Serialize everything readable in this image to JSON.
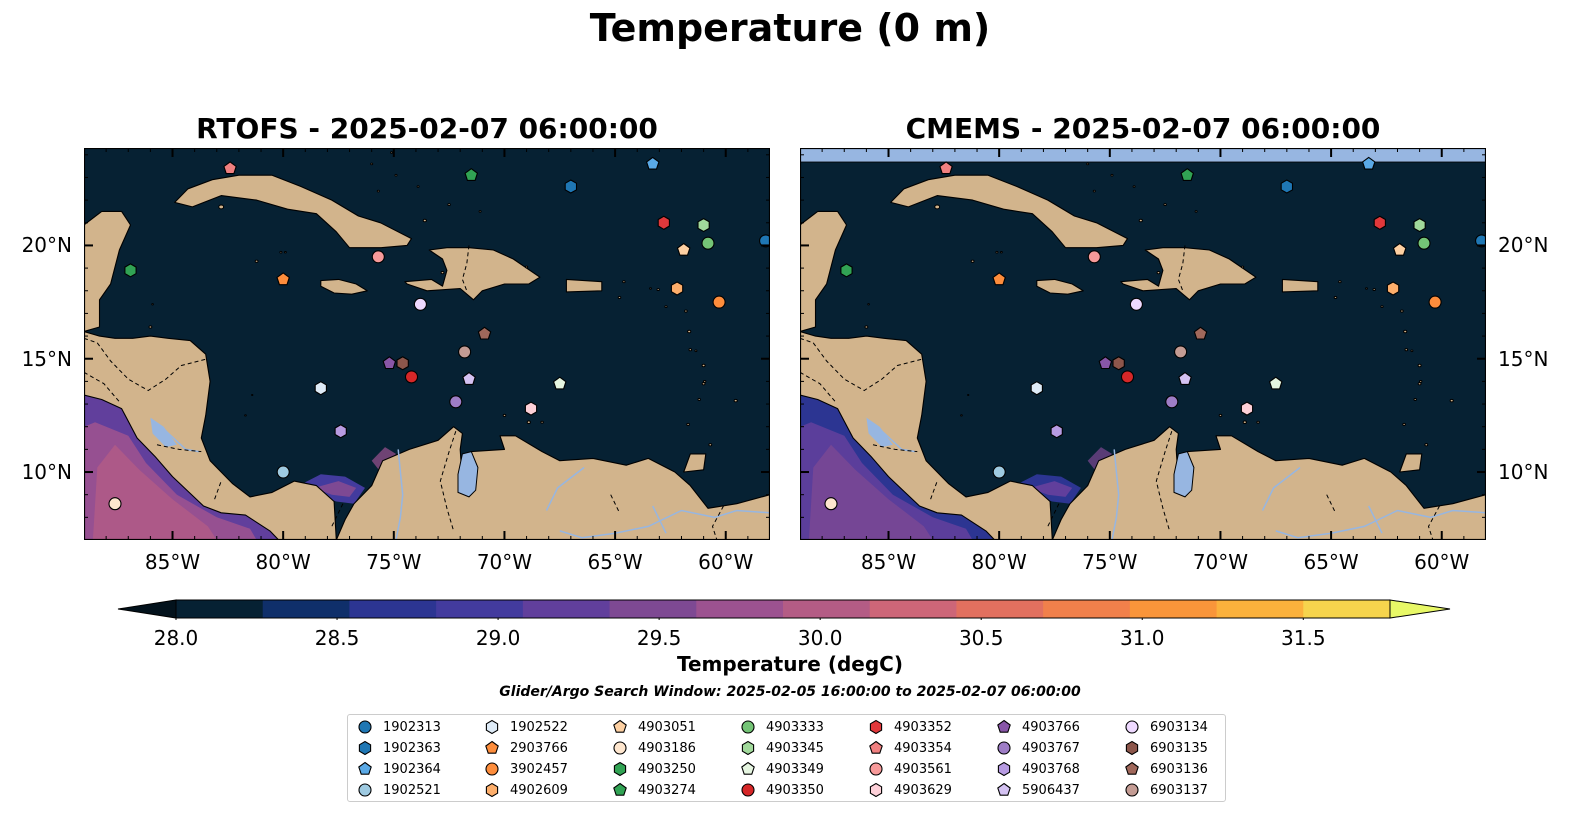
{
  "figure": {
    "suptitle": "Temperature (0 m)",
    "window_text": "Glider/Argo Search Window: 2025-02-05 16:00:00 to 2025-02-07 06:00:00"
  },
  "panels": [
    {
      "id": "rtofs",
      "title": "RTOFS - 2025-02-07 06:00:00",
      "top_strip": false
    },
    {
      "id": "cmems",
      "title": "CMEMS - 2025-02-07 06:00:00",
      "top_strip": true
    }
  ],
  "map": {
    "extent": {
      "lon_min": -89,
      "lon_max": -58,
      "lat_min": 7,
      "lat_max": 24.3
    },
    "lon_ticks": [
      {
        "lon": -85,
        "label": "85°W"
      },
      {
        "lon": -80,
        "label": "80°W"
      },
      {
        "lon": -75,
        "label": "75°W"
      },
      {
        "lon": -70,
        "label": "70°W"
      },
      {
        "lon": -65,
        "label": "65°W"
      },
      {
        "lon": -60,
        "label": "60°W"
      }
    ],
    "lat_ticks": [
      {
        "lat": 10,
        "label": "10°N"
      },
      {
        "lat": 15,
        "label": "15°N"
      },
      {
        "lat": 20,
        "label": "20°N"
      }
    ],
    "ocean_color": "#062133",
    "land_color": "#d2b48c",
    "lake_color": "#97b6e1"
  },
  "colorbar": {
    "label": "Temperature (degC)",
    "min": 28.0,
    "max": 31.5,
    "ticks": [
      "28.0",
      "28.5",
      "29.0",
      "29.5",
      "30.0",
      "30.5",
      "31.0",
      "31.5"
    ],
    "colors": [
      "#062133",
      "#0f2f6a",
      "#2c3592",
      "#433b9e",
      "#613f9c",
      "#7e4993",
      "#9c5290",
      "#b45c85",
      "#cd6678",
      "#e2705f",
      "#f1804b",
      "#f9953a",
      "#fbb13c",
      "#f6d44d"
    ],
    "under_color": "#03121c",
    "over_color": "#e8f867"
  },
  "floats": [
    {
      "id": "1902313",
      "marker": "circle",
      "color": "#1f77b4",
      "lon": -58.2,
      "lat": 20.2
    },
    {
      "id": "1902363",
      "marker": "hexagon",
      "color": "#1f77b4",
      "lon": -67.0,
      "lat": 22.6
    },
    {
      "id": "1902364",
      "marker": "pentagon",
      "color": "#5aa9e6",
      "lon": -63.3,
      "lat": 23.6
    },
    {
      "id": "1902521",
      "marker": "circle",
      "color": "#9ecae1",
      "lon": -80.0,
      "lat": 10.0
    },
    {
      "id": "1902522",
      "marker": "hexagon",
      "color": "#deebf7",
      "lon": -78.3,
      "lat": 13.7
    },
    {
      "id": "2903766",
      "marker": "pentagon",
      "color": "#fd8d3c",
      "lon": -80.0,
      "lat": 18.5
    },
    {
      "id": "3902457",
      "marker": "circle",
      "color": "#fd8d3c",
      "lon": -60.3,
      "lat": 17.5
    },
    {
      "id": "4902609",
      "marker": "hexagon",
      "color": "#fdae6b",
      "lon": -62.2,
      "lat": 18.1
    },
    {
      "id": "4903051",
      "marker": "pentagon",
      "color": "#fdd0a2",
      "lon": -61.9,
      "lat": 19.8
    },
    {
      "id": "4903186",
      "marker": "circle",
      "color": "#fee6ce",
      "lon": -87.6,
      "lat": 8.6
    },
    {
      "id": "4903250",
      "marker": "hexagon",
      "color": "#31a354",
      "lon": -86.9,
      "lat": 18.9
    },
    {
      "id": "4903274",
      "marker": "pentagon",
      "color": "#31a354",
      "lon": -71.5,
      "lat": 23.1
    },
    {
      "id": "4903333",
      "marker": "circle",
      "color": "#74c476",
      "lon": -60.8,
      "lat": 20.1
    },
    {
      "id": "4903345",
      "marker": "hexagon",
      "color": "#a1d99b",
      "lon": -61.0,
      "lat": 20.9
    },
    {
      "id": "4903349",
      "marker": "pentagon",
      "color": "#e5f5e0",
      "lon": -67.5,
      "lat": 13.9
    },
    {
      "id": "4903350",
      "marker": "circle",
      "color": "#d62728",
      "lon": -74.2,
      "lat": 14.2
    },
    {
      "id": "4903352",
      "marker": "hexagon",
      "color": "#e0383b",
      "lon": -62.8,
      "lat": 21.0
    },
    {
      "id": "4903354",
      "marker": "pentagon",
      "color": "#f08080",
      "lon": -82.4,
      "lat": 23.4
    },
    {
      "id": "4903561",
      "marker": "circle",
      "color": "#f79a9a",
      "lon": -75.7,
      "lat": 19.5
    },
    {
      "id": "4903629",
      "marker": "hexagon",
      "color": "#fdd0d8",
      "lon": -68.8,
      "lat": 12.8
    },
    {
      "id": "4903766",
      "marker": "pentagon",
      "color": "#8856a7",
      "lon": -75.2,
      "lat": 14.8
    },
    {
      "id": "4903767",
      "marker": "circle",
      "color": "#9e7dc6",
      "lon": -72.2,
      "lat": 13.1
    },
    {
      "id": "4903768",
      "marker": "hexagon",
      "color": "#b79be2",
      "lon": -77.4,
      "lat": 11.8
    },
    {
      "id": "5906437",
      "marker": "pentagon",
      "color": "#d4c2f2",
      "lon": -71.6,
      "lat": 14.1
    },
    {
      "id": "6903134",
      "marker": "circle",
      "color": "#eed9ff",
      "lon": -73.8,
      "lat": 17.4
    },
    {
      "id": "6903135",
      "marker": "hexagon",
      "color": "#8c564b",
      "lon": -74.6,
      "lat": 14.8
    },
    {
      "id": "6903136",
      "marker": "pentagon",
      "color": "#a0685b",
      "lon": -70.9,
      "lat": 16.1
    },
    {
      "id": "6903137",
      "marker": "circle",
      "color": "#c49c94",
      "lon": -71.8,
      "lat": 15.3
    }
  ]
}
